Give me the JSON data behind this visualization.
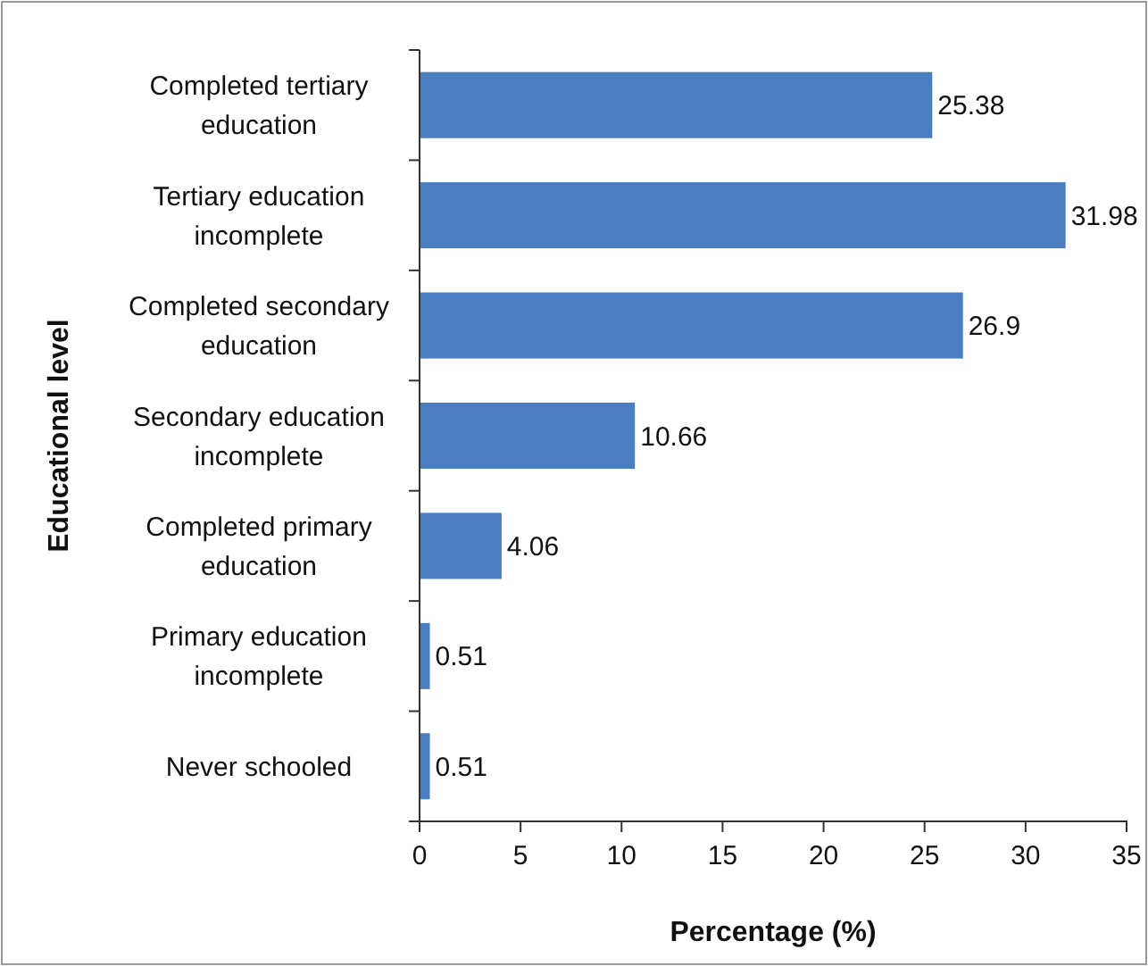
{
  "chart_data": {
    "type": "bar",
    "orientation": "horizontal",
    "xlabel": "Percentage (%)",
    "ylabel": "Educational level",
    "categories": [
      "Completed tertiary education",
      "Tertiary education incomplete",
      "Completed secondary education",
      "Secondary education incomplete",
      "Completed primary education",
      "Primary education incomplete",
      "Never schooled"
    ],
    "values": [
      25.38,
      31.98,
      26.9,
      10.66,
      4.06,
      0.51,
      0.51
    ],
    "color": "#4a7ec0",
    "xlim": [
      0,
      35
    ],
    "xticks": [
      0,
      5,
      10,
      15,
      20,
      25,
      30,
      35
    ],
    "data_labels": true,
    "grid": false
  }
}
